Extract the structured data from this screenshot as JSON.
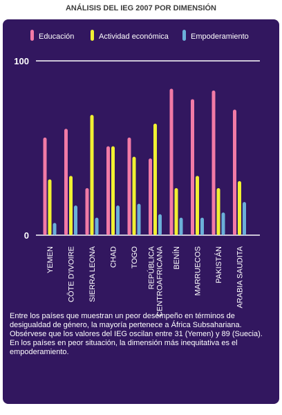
{
  "page_title": "ANÁLISIS DEL IEG 2007 POR DIMENSIÓN",
  "colors": {
    "panel_background": "#32175f",
    "educacion": "#f27aa6",
    "actividad": "#f0f032",
    "empoderamiento": "#6bb0d9",
    "text": "#ffffff"
  },
  "chart_data": {
    "type": "bar",
    "title": "",
    "xlabel": "",
    "ylabel": "",
    "ylim": [
      0,
      100
    ],
    "y_ticks": [
      0,
      100
    ],
    "grid": false,
    "legend_position": "top",
    "categories": [
      "YEMEN",
      "CÔTE D'IVOIRE",
      "SIERRA LEONA",
      "CHAD",
      "TOGO",
      "REPÚBLICA CENTROAFRICANA",
      "BENÍN",
      "MARRUECOS",
      "PAKISTÁN",
      "ARABIA SAUDITA"
    ],
    "series": [
      {
        "name": "Educación",
        "color": "#f27aa6",
        "values": [
          56,
          61,
          27,
          51,
          56,
          44,
          84,
          78,
          83,
          72
        ]
      },
      {
        "name": "Actividad económica",
        "color": "#f0f032",
        "values": [
          32,
          34,
          69,
          51,
          45,
          64,
          27,
          34,
          27,
          31
        ]
      },
      {
        "name": "Empoderamiento",
        "color": "#6bb0d9",
        "values": [
          7,
          17,
          10,
          17,
          18,
          12,
          10,
          10,
          13,
          19
        ]
      }
    ]
  },
  "note": {
    "paragraph_1": "Entre los países que muestran un peor desempeño en términos de desigualdad de género, la mayoría pertenece a África Subsahariana. Obsérvese que los valores del IEG oscilan entre 31 (Yemen) y 89 (Suecia).",
    "paragraph_2": "En los países en peor situación, la dimensión más inequitativa es el empoderamiento."
  }
}
